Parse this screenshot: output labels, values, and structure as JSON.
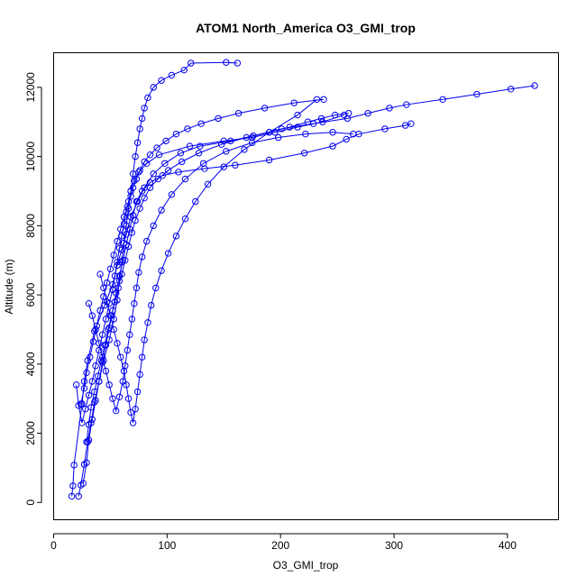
{
  "chart_data": {
    "type": "line",
    "title": "ATOM1 North_America O3_GMI_trop",
    "xlabel": "O3_GMI_trop",
    "ylabel": "Altitude (m)",
    "xlim": [
      0,
      445
    ],
    "ylim": [
      -500,
      13000
    ],
    "xticks": [
      0,
      100,
      200,
      300,
      400
    ],
    "yticks": [
      0,
      2000,
      4000,
      6000,
      8000,
      10000,
      12000
    ],
    "grid": false,
    "legend": "none",
    "colors": {
      "series": "#0000ee",
      "axis": "#000000",
      "background": "#ffffff"
    },
    "marker": "open-circle",
    "series": [
      {
        "x": [
          16,
          17,
          18,
          25,
          27,
          30,
          36,
          45,
          52,
          56,
          60,
          64,
          68,
          74,
          80,
          88,
          98,
          112,
          129,
          156,
          176,
          201,
          229,
          259,
          277,
          296,
          311,
          343,
          373,
          403,
          424
        ],
        "y": [
          180,
          480,
          1080,
          2850,
          3500,
          4100,
          4950,
          5700,
          6300,
          6850,
          7300,
          7750,
          8250,
          8700,
          9100,
          9500,
          9800,
          10100,
          10300,
          10450,
          10600,
          10800,
          10950,
          11100,
          11250,
          11400,
          11500,
          11650,
          11800,
          11950,
          12050
        ]
      },
      {
        "x": [
          22,
          24,
          27,
          30,
          33,
          36,
          40,
          44,
          49,
          53,
          56,
          58,
          60,
          62,
          64,
          66,
          68,
          70,
          72,
          74,
          76,
          78,
          80,
          83,
          88,
          95,
          104,
          115,
          121,
          152,
          162
        ],
        "y": [
          180,
          500,
          1100,
          1750,
          2300,
          2900,
          3500,
          4100,
          4700,
          5300,
          5850,
          6400,
          6950,
          7500,
          8000,
          8500,
          9000,
          9500,
          10000,
          10400,
          10800,
          11100,
          11400,
          11700,
          12000,
          12200,
          12350,
          12500,
          12700,
          12720,
          12700
        ]
      },
      {
        "x": [
          26,
          29,
          31,
          34,
          37,
          40,
          43,
          46,
          49,
          52,
          55,
          58,
          61,
          64,
          67,
          70,
          73,
          78,
          85,
          96,
          110,
          133,
          160,
          190,
          221,
          246,
          258,
          269,
          292,
          310,
          315
        ],
        "y": [
          550,
          1150,
          1800,
          2400,
          2950,
          3500,
          4050,
          4550,
          5050,
          5550,
          6050,
          6550,
          7000,
          7450,
          7900,
          8300,
          8700,
          9000,
          9250,
          9450,
          9550,
          9650,
          9750,
          9900,
          10100,
          10300,
          10500,
          10650,
          10800,
          10900,
          10950
        ]
      },
      {
        "x": [
          20,
          22,
          25,
          28,
          31,
          34,
          37,
          40,
          43,
          46,
          49,
          52,
          54,
          56,
          58,
          60,
          62,
          64,
          66,
          68,
          71,
          75,
          82,
          93,
          120,
          150,
          175,
          195,
          215,
          237,
          256
        ],
        "y": [
          3400,
          2800,
          2300,
          2700,
          3100,
          3500,
          3950,
          4400,
          4850,
          5300,
          5750,
          6150,
          6550,
          6950,
          7350,
          7700,
          8050,
          8400,
          8700,
          9000,
          9300,
          9550,
          9800,
          10050,
          10300,
          10450,
          10550,
          10700,
          10850,
          11000,
          11200
        ]
      },
      {
        "x": [
          29,
          31,
          33,
          36,
          39,
          42,
          45,
          48,
          51,
          54,
          57,
          60,
          63,
          66,
          69,
          72,
          76,
          80,
          85,
          92,
          101,
          113,
          128,
          148,
          170,
          190,
          208,
          224,
          236,
          248,
          260
        ],
        "y": [
          1750,
          2250,
          2750,
          3200,
          3650,
          4100,
          4550,
          5000,
          5400,
          5800,
          6200,
          6600,
          7000,
          7400,
          7800,
          8150,
          8500,
          8800,
          9100,
          9350,
          9600,
          9850,
          10100,
          10350,
          10550,
          10700,
          10850,
          11000,
          11100,
          11200,
          11250
        ]
      },
      {
        "x": [
          24,
          27,
          29,
          32,
          35,
          38,
          41,
          44,
          47,
          50,
          53,
          56,
          59,
          62,
          65,
          68,
          70,
          73,
          76,
          80,
          85,
          91,
          99,
          108,
          118,
          130,
          145,
          163,
          186,
          212,
          238
        ],
        "y": [
          2850,
          3300,
          3750,
          4200,
          4650,
          5100,
          5550,
          5950,
          6350,
          6750,
          7150,
          7550,
          7900,
          8250,
          8550,
          8850,
          9100,
          9350,
          9600,
          9850,
          10050,
          10250,
          10450,
          10650,
          10800,
          10950,
          11100,
          11250,
          11400,
          11550,
          11650
        ]
      },
      {
        "x": [
          41,
          44,
          47,
          50,
          53,
          56,
          59,
          62,
          64,
          66,
          68,
          70,
          72,
          74,
          76,
          78,
          80,
          83,
          86,
          90,
          95,
          101,
          108,
          116,
          125,
          136,
          150,
          168,
          190,
          215,
          232
        ],
        "y": [
          6600,
          6200,
          5800,
          5400,
          5000,
          4600,
          4200,
          3800,
          3400,
          3000,
          2600,
          2300,
          2700,
          3200,
          3700,
          4200,
          4700,
          5200,
          5700,
          6200,
          6700,
          7200,
          7700,
          8200,
          8700,
          9200,
          9700,
          10200,
          10700,
          11200,
          11650
        ]
      },
      {
        "x": [
          31,
          34,
          37,
          40,
          43,
          46,
          49,
          52,
          55,
          58,
          61,
          63,
          65,
          67,
          69,
          71,
          73,
          75,
          78,
          82,
          88,
          95,
          104,
          116,
          132,
          152,
          175,
          198,
          222,
          246,
          264
        ],
        "y": [
          5750,
          5400,
          5000,
          4600,
          4200,
          3800,
          3400,
          3000,
          2650,
          3050,
          3500,
          3950,
          4400,
          4850,
          5300,
          5750,
          6200,
          6650,
          7100,
          7550,
          8000,
          8450,
          8900,
          9350,
          9800,
          10150,
          10400,
          10550,
          10650,
          10700,
          10650
        ]
      }
    ]
  }
}
